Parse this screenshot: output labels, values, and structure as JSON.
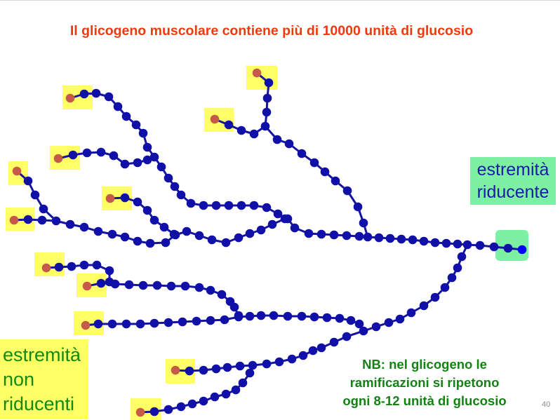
{
  "slide": {
    "title": "Il glicogeno muscolare contiene più di 10000 unità di glucosio",
    "reducing_end": {
      "line1": "estremità",
      "line2": "riducente"
    },
    "non_reducing_ends": {
      "line1": "estremità",
      "line2": "non",
      "line3": "riducenti"
    },
    "note": {
      "line1": "NB: nel glicogeno le",
      "line2": "ramificazioni si ripetono",
      "line3": "ogni 8-12 unità di glucosio"
    },
    "page_number": "40"
  },
  "colors": {
    "title": "#ee3a10",
    "glucose_unit": "#1010a8",
    "glucose_bond": "#1414a0",
    "non_reducing_unit": "#c65a4a",
    "non_reducing_highlight": "#ffff66",
    "reducing_unit": "#0000ff",
    "reducing_highlight": "#7ef0a4",
    "note_text": "#138213",
    "reducing_label_text": "#1a1aa8",
    "non_reducing_label_text": "#128a12"
  }
}
